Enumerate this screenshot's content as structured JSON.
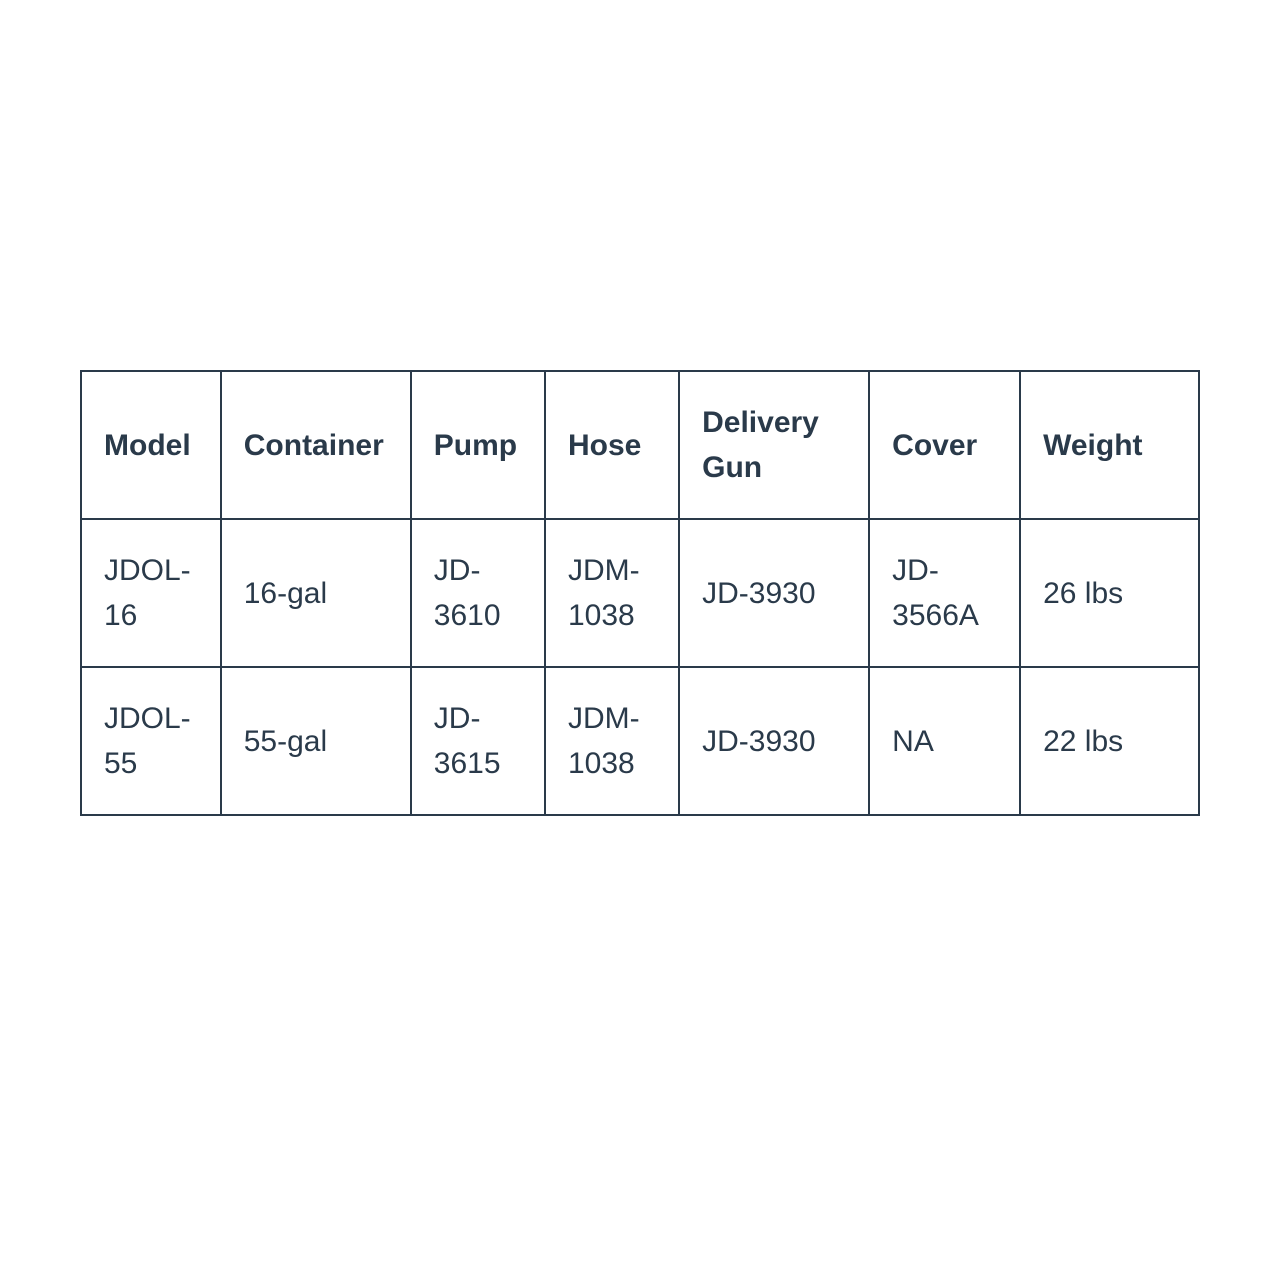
{
  "table": {
    "type": "table",
    "border_color": "#2a3a4a",
    "text_color": "#2a3a4a",
    "background_color": "#ffffff",
    "header_font_weight": 700,
    "body_font_weight": 400,
    "font_size_pt": 22,
    "columns": [
      {
        "key": "model",
        "label": "Model",
        "width_pct": 12.5
      },
      {
        "key": "container",
        "label": "Container",
        "width_pct": 17
      },
      {
        "key": "pump",
        "label": "Pump",
        "width_pct": 12
      },
      {
        "key": "hose",
        "label": "Hose",
        "width_pct": 12
      },
      {
        "key": "delivery_gun",
        "label": "Delivery Gun",
        "width_pct": 17
      },
      {
        "key": "cover",
        "label": "Cover",
        "width_pct": 13.5
      },
      {
        "key": "weight",
        "label": "Weight",
        "width_pct": 16
      }
    ],
    "rows": [
      {
        "model": "JDOL-16",
        "container": "16-gal",
        "pump": "JD-3610",
        "hose": "JDM-1038",
        "delivery_gun": "JD-3930",
        "cover": "JD-3566A",
        "weight": "26 lbs"
      },
      {
        "model": "JDOL-55",
        "container": "55-gal",
        "pump": "JD-3615",
        "hose": "JDM-1038",
        "delivery_gun": "JD-3930",
        "cover": "NA",
        "weight": "22 lbs"
      }
    ]
  }
}
